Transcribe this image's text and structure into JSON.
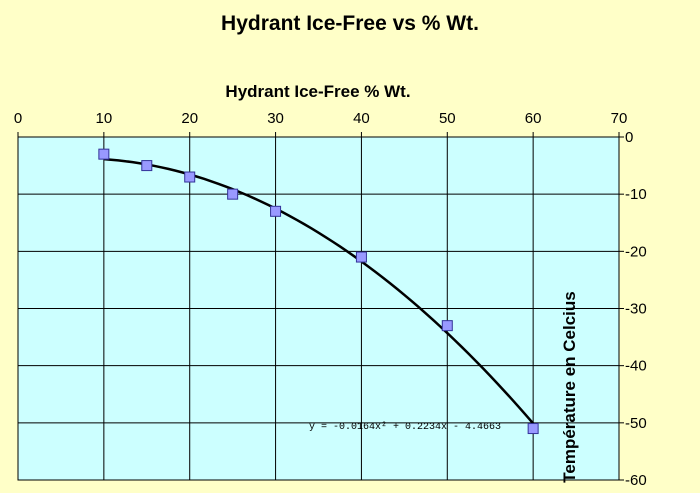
{
  "chart_data": {
    "type": "scatter",
    "title": "Hydrant Ice-Free vs % Wt.",
    "xlabel": "Hydrant Ice-Free % Wt.",
    "ylabel": "Température en Celcius",
    "x_axis_position": "top",
    "y_axis_position": "right",
    "xlim": [
      0,
      70
    ],
    "ylim": [
      -60,
      0
    ],
    "xticks": [
      0,
      10,
      20,
      30,
      40,
      50,
      60,
      70
    ],
    "yticks": [
      0,
      -10,
      -20,
      -30,
      -40,
      -50,
      -60
    ],
    "grid": true,
    "legend": "none",
    "series": [
      {
        "x": [
          10,
          15,
          20,
          25,
          30,
          40,
          50,
          60
        ],
        "y": [
          -3,
          -5,
          -7,
          -10,
          -13,
          -21,
          -33,
          -51
        ]
      }
    ],
    "trendline": {
      "type": "polynomial",
      "equation": "y = -0.0164x² + 0.2234x - 4.4663",
      "coefficients": {
        "a": -0.0164,
        "b": 0.2234,
        "c": -4.4663
      },
      "x_range": [
        10,
        60
      ]
    },
    "colors": {
      "plot_background": "#ccffff",
      "page_background": "#ffffc8",
      "marker_fill": "#9999ff",
      "marker_stroke": "#333399",
      "trendline": "#000000",
      "grid": "#000000"
    }
  }
}
